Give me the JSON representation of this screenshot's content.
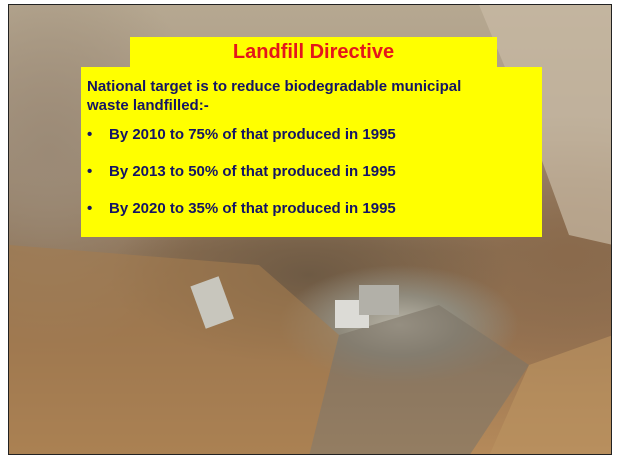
{
  "slide": {
    "title": "Landfill Directive",
    "intro": "National target is to reduce biodegradable municipal waste landfilled:-",
    "bullets": [
      "By 2010 to 75% of that produced in 1995",
      "By 2013 to 50% of that produced in 1995",
      "By 2020 to 35% of that produced in 1995"
    ]
  }
}
